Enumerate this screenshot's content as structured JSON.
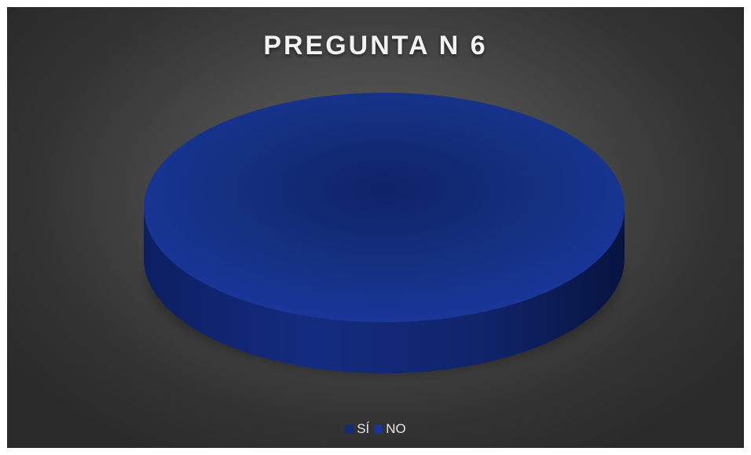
{
  "chart_data": {
    "type": "pie",
    "title": "PREGUNTA N 6",
    "categories": [
      "SÍ",
      "NO"
    ],
    "values": [
      0,
      100
    ],
    "colors": [
      "#132a78",
      "#1a3596"
    ],
    "legend": "bottom",
    "style": "3d-pie"
  }
}
